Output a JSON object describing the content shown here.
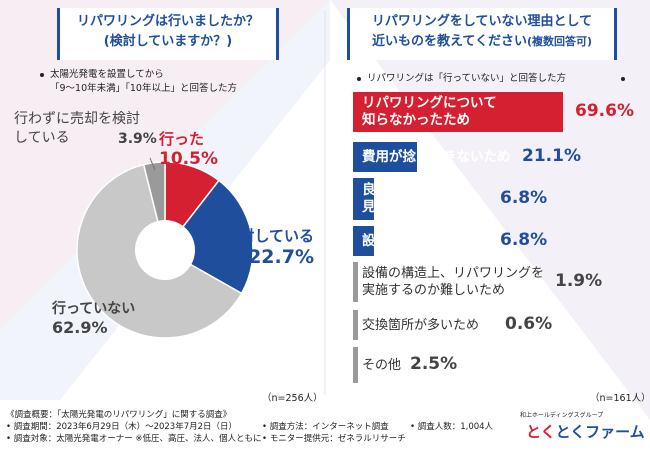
{
  "left_panel": {
    "title_line1": "リパワリングは行いましたか？",
    "title_line2": "(検討していますか？)",
    "condition_line1": "太陽光発電を設置してから",
    "condition_line2": "「9～10年未満」「10年以上」と回答した方",
    "n_label": "（n=256人）"
  },
  "right_panel": {
    "title_line1": "リパワリングをしていない理由として",
    "title_line2": "近いものを教えてください",
    "title_suffix": "(複数回答可)",
    "condition": "リパワリングは「行っていない」と回答した方",
    "n_label": "（n=161人）"
  },
  "chart_data": [
    {
      "type": "pie",
      "title": "リパワリングは行いましたか？(検討していますか？)",
      "labels": [
        "行った",
        "検討している",
        "行っていない",
        "行わずに売却を検討している"
      ],
      "values": [
        10.5,
        22.7,
        62.9,
        3.9
      ],
      "value_labels": [
        "10.5%",
        "22.7%",
        "62.9%",
        "3.9%"
      ],
      "colors": [
        "#d42030",
        "#1f4e9c",
        "#c8c8c8",
        "#9a9a9a"
      ],
      "inner_hole": true
    },
    {
      "type": "bar",
      "orientation": "horizontal",
      "title": "リパワリングをしていない理由として近いものを教えてください(複数回答可)",
      "categories": [
        "リパワリングについて知らなかったため",
        "費用が捻出できないため",
        "良い専門業者が見つからないため",
        "設備が大きいため",
        "設備の構造上、リパワリングを実施するのか難しいため",
        "交換箇所が多いため",
        "その他"
      ],
      "label_lines": [
        [
          "リパワリングについて",
          "知らなかったため"
        ],
        [
          "費用が捻出できないため"
        ],
        [
          "良い専門業者が",
          "見つからないため"
        ],
        [
          "設備が大きいため"
        ],
        [
          "設備の構造上、リパワリングを",
          "実施するのか難しいため"
        ],
        [
          "交換箇所が多いため"
        ],
        [
          "その他"
        ]
      ],
      "values": [
        69.6,
        21.1,
        6.8,
        6.8,
        1.9,
        0.6,
        2.5
      ],
      "value_labels": [
        "69.6%",
        "21.1%",
        "6.8%",
        "6.8%",
        "1.9%",
        "0.6%",
        "2.5%"
      ],
      "colors": [
        "#d42030",
        "#1f4e9c",
        "#1f4e9c",
        "#1f4e9c",
        "#9a9a9a",
        "#9a9a9a",
        "#9a9a9a"
      ],
      "xlim": [
        0,
        100
      ]
    }
  ],
  "footer": {
    "line1": "《調査概要：「太陽光発電のリパワリング」に関する調査》",
    "line2": "• 調査期間：2023年6月29日（木）～2023年7月2日（日）",
    "line3": "• 調査対象：太陽光発電オーナー ※低圧、高圧、法人、個人ともに",
    "method": "• 調査方法：インターネット調査",
    "people": "• 調査人数：1,004人",
    "provider": "• モニター提供元：ゼネラルリサーチ"
  },
  "logo": {
    "subtitle": "和上ホールディングスグループ",
    "part1": "とく",
    "part2": "とく",
    "part3": "ファーム"
  }
}
